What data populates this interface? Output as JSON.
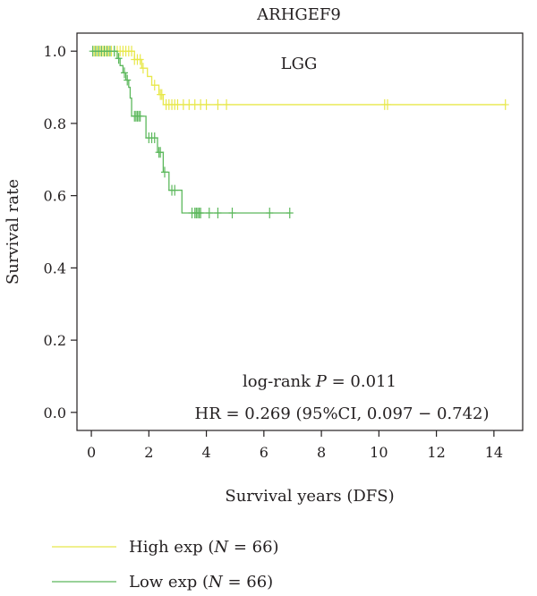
{
  "chart_data": {
    "type": "line",
    "title": "ARHGEF9",
    "subtitle": "LGG",
    "xlabel": "Survival years (DFS)",
    "ylabel": "Survival rate",
    "xlim": [
      -0.5,
      15
    ],
    "ylim": [
      -0.05,
      1.05
    ],
    "xticks": [
      "0",
      "2",
      "4",
      "6",
      "8",
      "10",
      "12",
      "14"
    ],
    "yticks": [
      "0.0",
      "0.2",
      "0.4",
      "0.6",
      "0.8",
      "1.0"
    ],
    "grid": false,
    "legend_position": "bottom-left",
    "annotations": {
      "logrank_prefix": "log-rank ",
      "logrank_p": "P",
      "logrank_value": " = 0.011",
      "hr": "HR = 0.269 (95%CI, 0.097 − 0.742)"
    },
    "series": [
      {
        "legend_prefix": "High exp (",
        "legend_n": "N",
        "legend_suffix": " = 66)",
        "color": "#e8e84a",
        "steps": [
          [
            0,
            1.0
          ],
          [
            1.5,
            0.977
          ],
          [
            1.75,
            0.953
          ],
          [
            1.95,
            0.93
          ],
          [
            2.1,
            0.906
          ],
          [
            2.35,
            0.88
          ],
          [
            2.5,
            0.852
          ],
          [
            14.4,
            0.852
          ]
        ],
        "censors": [
          [
            0.1,
            1.0
          ],
          [
            0.2,
            1.0
          ],
          [
            0.3,
            1.0
          ],
          [
            0.4,
            1.0
          ],
          [
            0.5,
            1.0
          ],
          [
            0.6,
            1.0
          ],
          [
            0.7,
            1.0
          ],
          [
            0.8,
            1.0
          ],
          [
            0.9,
            1.0
          ],
          [
            1.0,
            1.0
          ],
          [
            1.1,
            1.0
          ],
          [
            1.2,
            1.0
          ],
          [
            1.3,
            1.0
          ],
          [
            1.4,
            1.0
          ],
          [
            1.5,
            0.977
          ],
          [
            1.6,
            0.977
          ],
          [
            1.7,
            0.977
          ],
          [
            1.8,
            0.953
          ],
          [
            2.2,
            0.906
          ],
          [
            2.4,
            0.88
          ],
          [
            2.45,
            0.88
          ],
          [
            2.6,
            0.852
          ],
          [
            2.7,
            0.852
          ],
          [
            2.8,
            0.852
          ],
          [
            2.9,
            0.852
          ],
          [
            3.0,
            0.852
          ],
          [
            3.2,
            0.852
          ],
          [
            3.4,
            0.852
          ],
          [
            3.6,
            0.852
          ],
          [
            3.8,
            0.852
          ],
          [
            4.0,
            0.852
          ],
          [
            4.4,
            0.852
          ],
          [
            4.7,
            0.852
          ],
          [
            10.2,
            0.852
          ],
          [
            10.3,
            0.852
          ],
          [
            14.4,
            0.852
          ]
        ]
      },
      {
        "legend_prefix": "Low exp (",
        "legend_n": "N",
        "legend_suffix": " = 66)",
        "color": "#5cb85c",
        "steps": [
          [
            0,
            1.0
          ],
          [
            0.9,
            0.98
          ],
          [
            1.0,
            0.96
          ],
          [
            1.1,
            0.94
          ],
          [
            1.2,
            0.92
          ],
          [
            1.3,
            0.9
          ],
          [
            1.35,
            0.87
          ],
          [
            1.4,
            0.82
          ],
          [
            1.9,
            0.76
          ],
          [
            2.3,
            0.72
          ],
          [
            2.5,
            0.665
          ],
          [
            2.7,
            0.615
          ],
          [
            3.15,
            0.552
          ],
          [
            6.9,
            0.552
          ]
        ],
        "censors": [
          [
            0.05,
            1.0
          ],
          [
            0.15,
            1.0
          ],
          [
            0.25,
            1.0
          ],
          [
            0.35,
            1.0
          ],
          [
            0.45,
            1.0
          ],
          [
            0.55,
            1.0
          ],
          [
            0.65,
            1.0
          ],
          [
            0.8,
            1.0
          ],
          [
            0.95,
            0.98
          ],
          [
            1.15,
            0.94
          ],
          [
            1.25,
            0.92
          ],
          [
            1.5,
            0.82
          ],
          [
            1.55,
            0.82
          ],
          [
            1.6,
            0.82
          ],
          [
            1.65,
            0.82
          ],
          [
            1.7,
            0.82
          ],
          [
            2.0,
            0.76
          ],
          [
            2.1,
            0.76
          ],
          [
            2.2,
            0.76
          ],
          [
            2.35,
            0.72
          ],
          [
            2.4,
            0.72
          ],
          [
            2.55,
            0.665
          ],
          [
            2.8,
            0.615
          ],
          [
            2.9,
            0.615
          ],
          [
            3.5,
            0.552
          ],
          [
            3.6,
            0.552
          ],
          [
            3.65,
            0.552
          ],
          [
            3.7,
            0.552
          ],
          [
            3.75,
            0.552
          ],
          [
            3.8,
            0.552
          ],
          [
            4.1,
            0.552
          ],
          [
            4.4,
            0.552
          ],
          [
            4.9,
            0.552
          ],
          [
            6.2,
            0.552
          ],
          [
            6.9,
            0.552
          ]
        ]
      }
    ]
  }
}
